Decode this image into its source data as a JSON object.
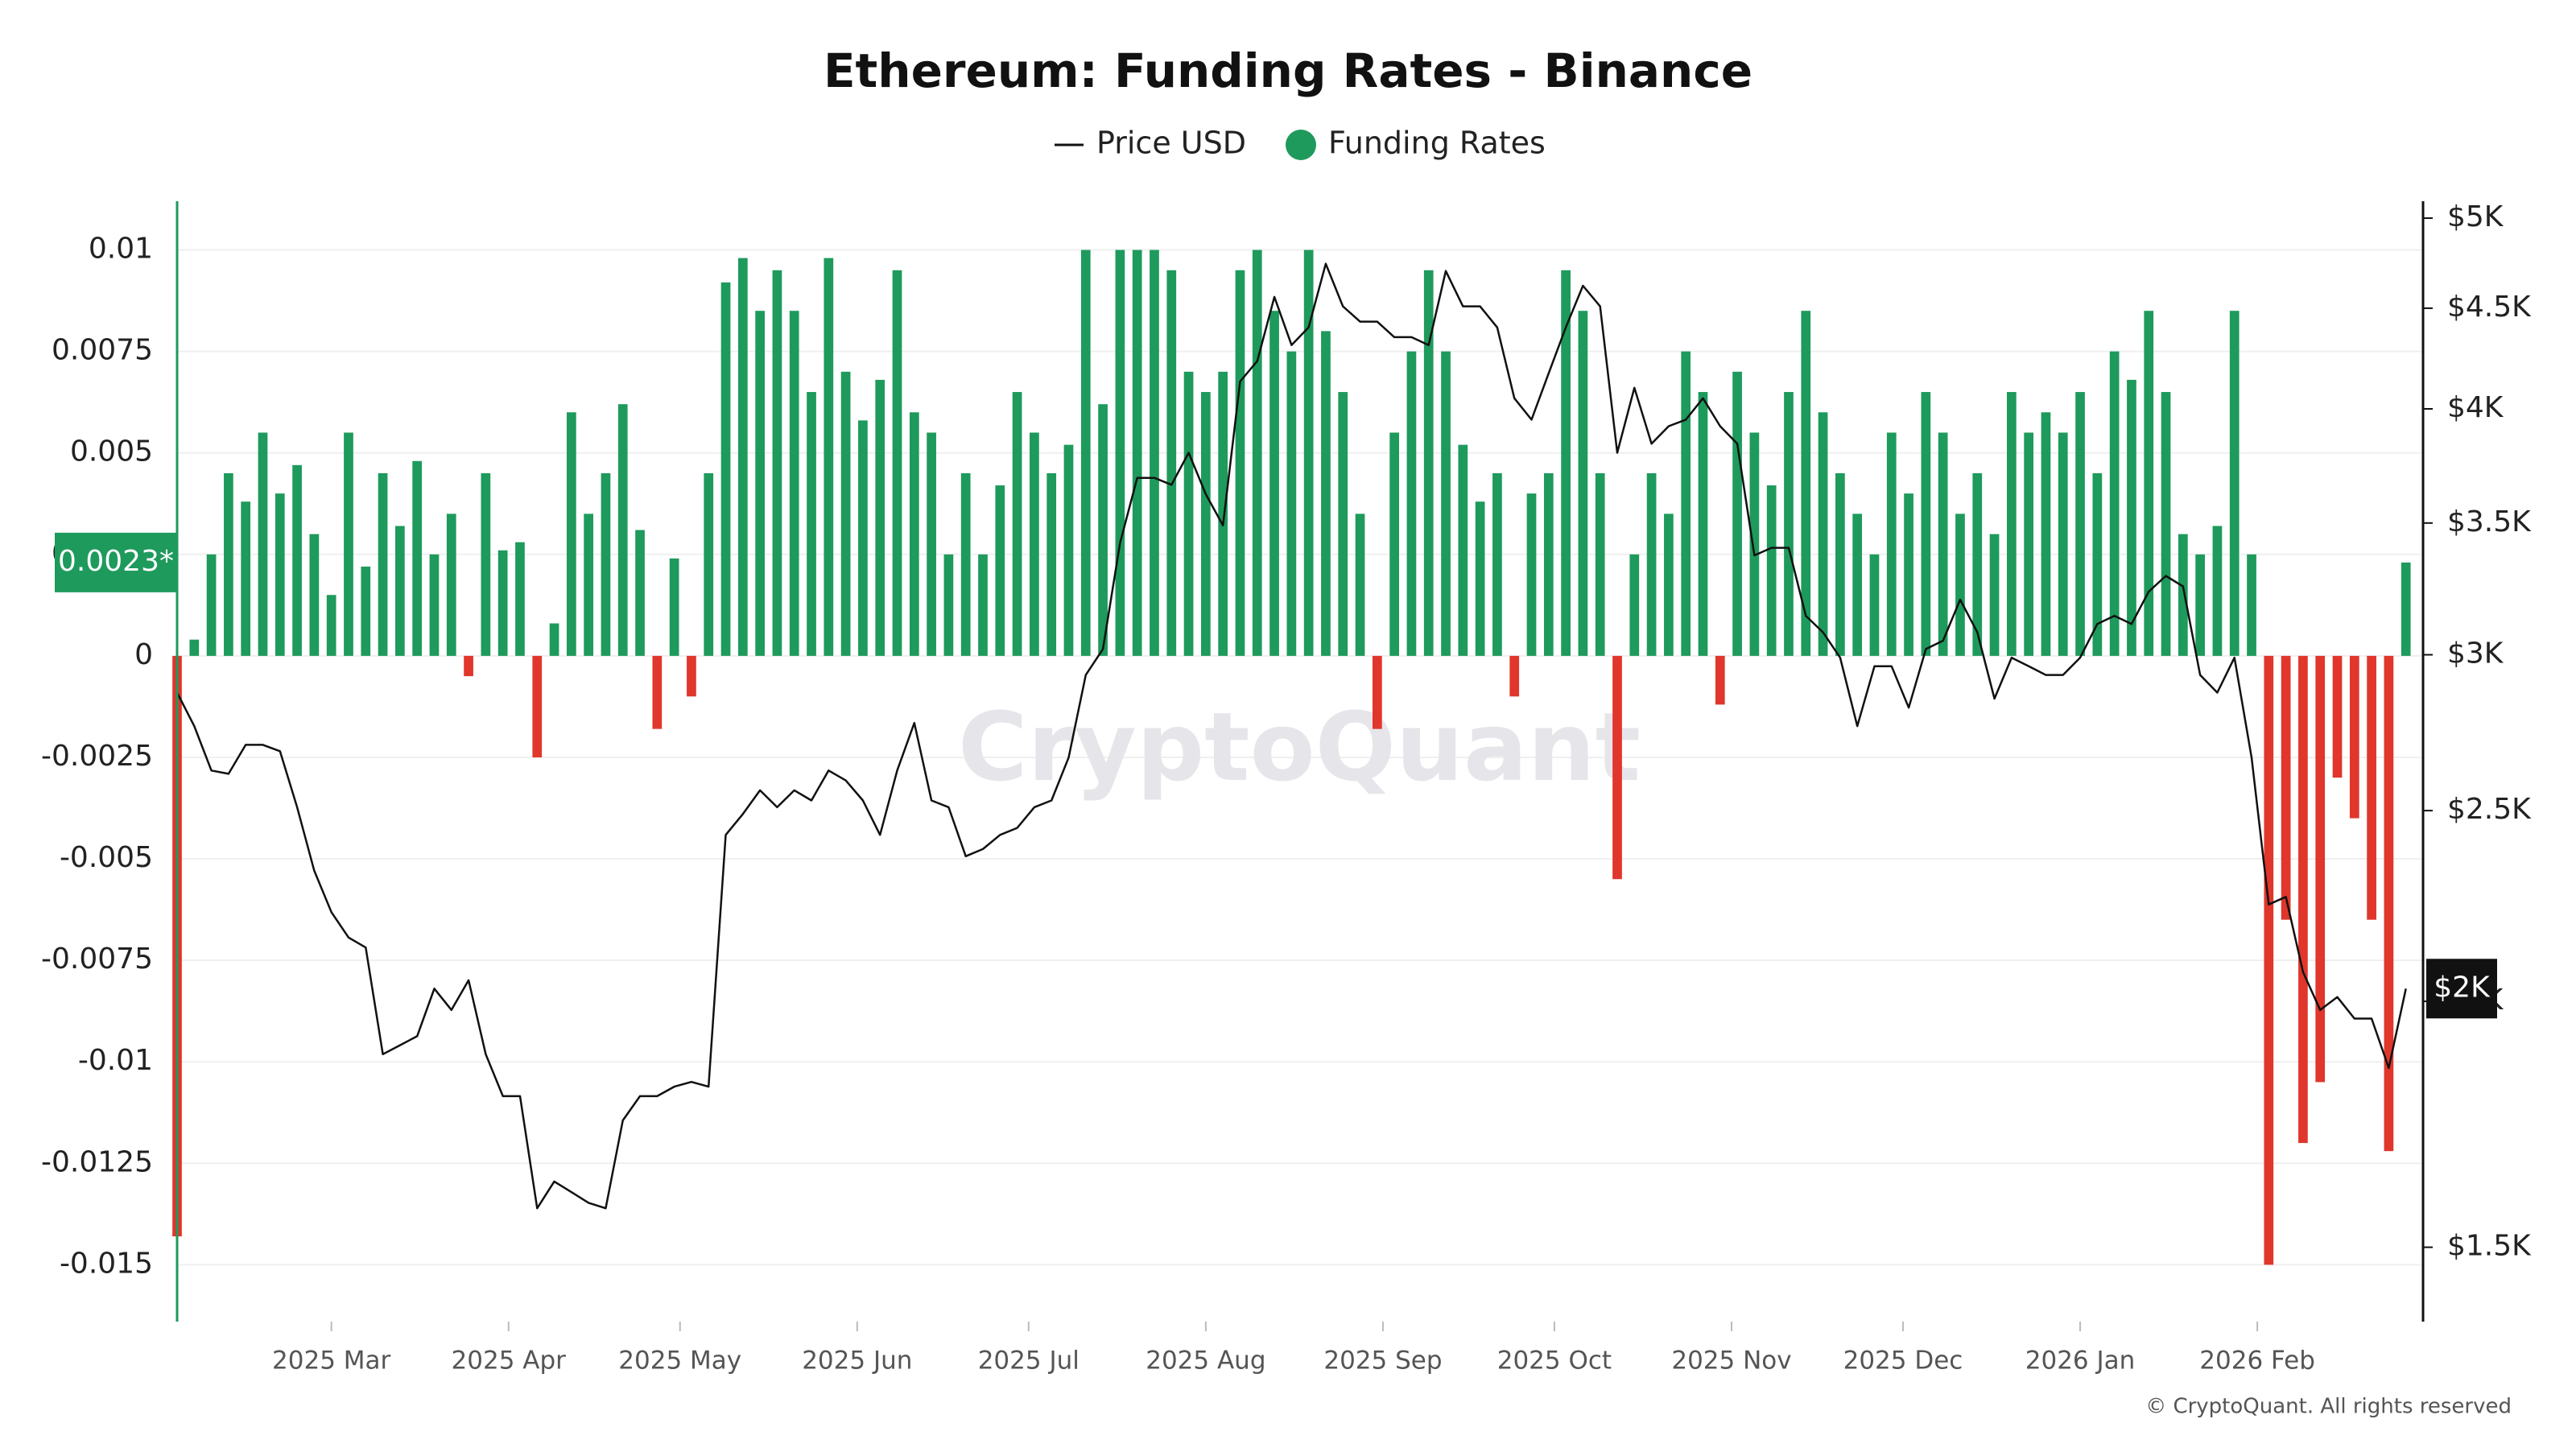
{
  "chart_data": {
    "type": "bar-line",
    "title": "Ethereum: Funding Rates - Binance",
    "annotation": "0.0023*",
    "price_annotation": "$2K",
    "watermark": "CryptoQuant",
    "credit": "© CryptoQuant. All rights reserved",
    "x": [
      0,
      3,
      6,
      9,
      12,
      15,
      18,
      21,
      24,
      27,
      30,
      33,
      36,
      39,
      42,
      45,
      48,
      51,
      54,
      57,
      60,
      63,
      66,
      69,
      72,
      75,
      78,
      81,
      84,
      87,
      90,
      93,
      96,
      99,
      102,
      105,
      108,
      111,
      114,
      117,
      120,
      123,
      126,
      129,
      132,
      135,
      138,
      141,
      144,
      147,
      150,
      153,
      156,
      159,
      162,
      165,
      168,
      171,
      174,
      177,
      180,
      183,
      186,
      189,
      192,
      195,
      198,
      201,
      204,
      207,
      210,
      213,
      216,
      219,
      222,
      225,
      228,
      231,
      234,
      237,
      240,
      243,
      246,
      249,
      252,
      255,
      258,
      261,
      264,
      267,
      270,
      273,
      276,
      279,
      282,
      285,
      288,
      291,
      294,
      297,
      300,
      303,
      306,
      309,
      312,
      315,
      318,
      321,
      324,
      327,
      330,
      333,
      336,
      339,
      342,
      345,
      348,
      351,
      354,
      357,
      360,
      363,
      366,
      369,
      372,
      375,
      378,
      381,
      384,
      387,
      390
    ],
    "xlim": [
      0,
      393
    ],
    "xticks": [
      {
        "value": 27,
        "label": "2025 Mar"
      },
      {
        "value": 58,
        "label": "2025 Apr"
      },
      {
        "value": 88,
        "label": "2025 May"
      },
      {
        "value": 119,
        "label": "2025 Jun"
      },
      {
        "value": 149,
        "label": "2025 Jul"
      },
      {
        "value": 180,
        "label": "2025 Aug"
      },
      {
        "value": 211,
        "label": "2025 Sep"
      },
      {
        "value": 241,
        "label": "2025 Oct"
      },
      {
        "value": 272,
        "label": "2025 Nov"
      },
      {
        "value": 302,
        "label": "2025 Dec"
      },
      {
        "value": 333,
        "label": "2026 Jan"
      },
      {
        "value": 364,
        "label": "2026 Feb"
      }
    ],
    "ylim": [
      -0.0164,
      0.0112
    ],
    "yticks": [
      -0.015,
      -0.0125,
      -0.01,
      -0.0075,
      -0.005,
      -0.0025,
      0,
      0.0025,
      0.005,
      0.0075,
      0.01
    ],
    "y2lim": [
      1375,
      5100
    ],
    "y2log": true,
    "y2ticks": [
      {
        "value": 1500,
        "label": "$1.5K"
      },
      {
        "value": 2000,
        "label": "$2K"
      },
      {
        "value": 2500,
        "label": "$2.5K"
      },
      {
        "value": 3000,
        "label": "$3K"
      },
      {
        "value": 3500,
        "label": "$3.5K"
      },
      {
        "value": 4000,
        "label": "$4K"
      },
      {
        "value": 4500,
        "label": "$4.5K"
      },
      {
        "value": 5000,
        "label": "$5K"
      }
    ],
    "grid": true,
    "legend": "top",
    "series": [
      {
        "name": "Price USD",
        "type": "line",
        "axis": "y2",
        "color": "#111111",
        "values": [
          2870,
          2760,
          2620,
          2610,
          2700,
          2700,
          2680,
          2510,
          2330,
          2220,
          2155,
          2130,
          1880,
          1900,
          1920,
          2030,
          1980,
          2050,
          1880,
          1790,
          1790,
          1570,
          1620,
          1600,
          1580,
          1570,
          1740,
          1790,
          1790,
          1810,
          1820,
          1810,
          2430,
          2490,
          2560,
          2510,
          2560,
          2530,
          2620,
          2590,
          2530,
          2430,
          2620,
          2770,
          2530,
          2510,
          2370,
          2390,
          2430,
          2450,
          2510,
          2530,
          2660,
          2930,
          3020,
          3420,
          3690,
          3690,
          3660,
          3800,
          3620,
          3490,
          4130,
          4230,
          4560,
          4310,
          4400,
          4740,
          4510,
          4430,
          4430,
          4350,
          4350,
          4310,
          4700,
          4510,
          4510,
          4400,
          4050,
          3950,
          4170,
          4400,
          4620,
          4510,
          3800,
          4100,
          3840,
          3920,
          3950,
          4050,
          3920,
          3840,
          3370,
          3400,
          3400,
          3140,
          3080,
          2990,
          2760,
          2960,
          2960,
          2820,
          3020,
          3050,
          3200,
          3080,
          2850,
          2990,
          2960,
          2930,
          2930,
          2990,
          3110,
          3140,
          3110,
          3230,
          3290,
          3250,
          2930,
          2870,
          2990,
          2660,
          2240,
          2260,
          2070,
          1980,
          2010,
          1960,
          1960,
          1850,
          2030
        ]
      },
      {
        "name": "Funding Rates",
        "type": "bar",
        "color": "#1e9a5c",
        "negative_color": "#e0362c",
        "values": [
          -0.0143,
          0.0004,
          0.0025,
          0.0045,
          0.0038,
          0.0055,
          0.004,
          0.0047,
          0.003,
          0.0015,
          0.0055,
          0.0022,
          0.0045,
          0.0032,
          0.0048,
          0.0025,
          0.0035,
          -0.0005,
          0.0045,
          0.0026,
          0.0028,
          -0.0025,
          0.0008,
          0.006,
          0.0035,
          0.0045,
          0.0062,
          0.0031,
          -0.0018,
          0.0024,
          -0.001,
          0.0045,
          0.0092,
          0.0098,
          0.0085,
          0.0095,
          0.0085,
          0.0065,
          0.0098,
          0.007,
          0.0058,
          0.0068,
          0.0095,
          0.006,
          0.0055,
          0.0025,
          0.0045,
          0.0025,
          0.0042,
          0.0065,
          0.0055,
          0.0045,
          0.0052,
          0.01,
          0.0062,
          0.01,
          0.01,
          0.01,
          0.0095,
          0.007,
          0.0065,
          0.007,
          0.0095,
          0.01,
          0.0085,
          0.0075,
          0.01,
          0.008,
          0.0065,
          0.0035,
          -0.0018,
          0.0055,
          0.0075,
          0.0095,
          0.0075,
          0.0052,
          0.0038,
          0.0045,
          -0.001,
          0.004,
          0.0045,
          0.0095,
          0.0085,
          0.0045,
          -0.0055,
          0.0025,
          0.0045,
          0.0035,
          0.0075,
          0.0065,
          -0.0012,
          0.007,
          0.0055,
          0.0042,
          0.0065,
          0.0085,
          0.006,
          0.0045,
          0.0035,
          0.0025,
          0.0055,
          0.004,
          0.0065,
          0.0055,
          0.0035,
          0.0045,
          0.003,
          0.0065,
          0.0055,
          0.006,
          0.0055,
          0.0065,
          0.0045,
          0.0075,
          0.0068,
          0.0085,
          0.0065,
          0.003,
          0.0025,
          0.0032,
          0.0085,
          0.0025,
          -0.015,
          -0.0065,
          -0.012,
          -0.0105,
          -0.003,
          -0.004,
          -0.0065,
          -0.0122,
          0.0023
        ]
      }
    ]
  }
}
